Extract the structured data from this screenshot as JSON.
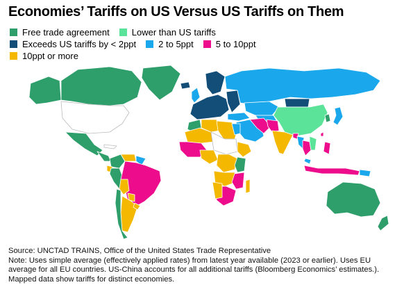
{
  "title": "Economies’ Tariffs on US Versus US Tariffs on Them",
  "legend": [
    {
      "label": "Free trade agreement",
      "color": "#2e9e6b",
      "key": "fta"
    },
    {
      "label": "Lower than US tariffs",
      "color": "#5ce39a",
      "key": "lower"
    },
    {
      "label": "Exceeds US tariffs by < 2ppt",
      "color": "#124e78",
      "key": "lt2"
    },
    {
      "label": "2 to 5ppt",
      "color": "#1aa7ec",
      "key": "p2to5"
    },
    {
      "label": "5 to 10ppt",
      "color": "#ec0c8c",
      "key": "p5to10"
    },
    {
      "label": "10ppt or more",
      "color": "#f5b800",
      "key": "p10plus"
    }
  ],
  "no_data_color": "#ffffff",
  "source": "Source: UNCTAD TRAINS, Office of the United States Trade Representative",
  "note": "Note: Uses simple average (effectively applied rates) from latest year available (2023 or earlier). Uses EU average for all EU countries. US-China accounts for all additional tariffs (Bloomberg Economics’ estimates.). Mapped data show tariffs for distinct economies."
}
